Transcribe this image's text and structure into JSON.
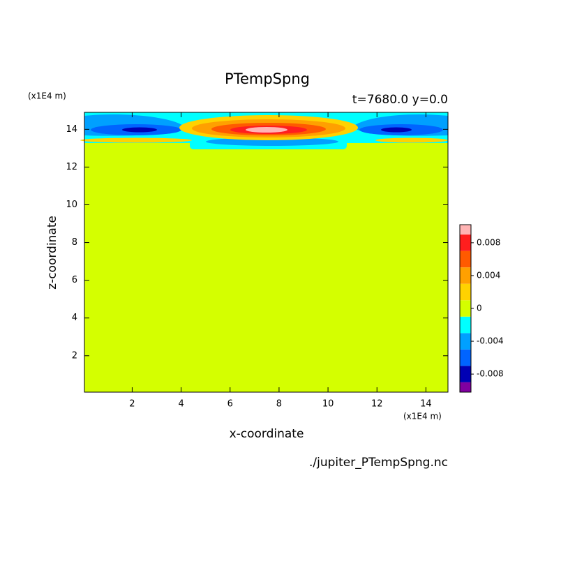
{
  "chart_data": {
    "type": "contour",
    "title": "PTempSpng",
    "subtitle": "t=7680.0 y=0.0",
    "xlabel": "x-coordinate",
    "ylabel": "z-coordinate",
    "x_units": "(x1E4 m)",
    "y_units": "(x1E4 m)",
    "footer": "./jupiter_PTempSpng.nc",
    "xlim": [
      0.05,
      14.9
    ],
    "ylim": [
      0.07,
      14.9
    ],
    "xticks": [
      2,
      4,
      6,
      8,
      10,
      12,
      14
    ],
    "yticks": [
      2,
      4,
      6,
      8,
      10,
      12,
      14
    ],
    "colorbar": {
      "clim": [
        -0.0102,
        0.0102
      ],
      "levels": [
        -0.011,
        -0.009,
        -0.007,
        -0.005,
        -0.003,
        -0.001,
        0.001,
        0.003,
        0.005,
        0.007,
        0.009,
        0.011
      ],
      "colors": [
        "#8000a0",
        "#0000b4",
        "#0064ff",
        "#00a0ff",
        "#00ffff",
        "#d4ff00",
        "#ffd200",
        "#ffa000",
        "#ff5a00",
        "#ff1e1e",
        "#ffb4b4"
      ],
      "ticks": [
        -0.008,
        -0.004,
        0,
        0.004,
        0.008
      ]
    }
  }
}
